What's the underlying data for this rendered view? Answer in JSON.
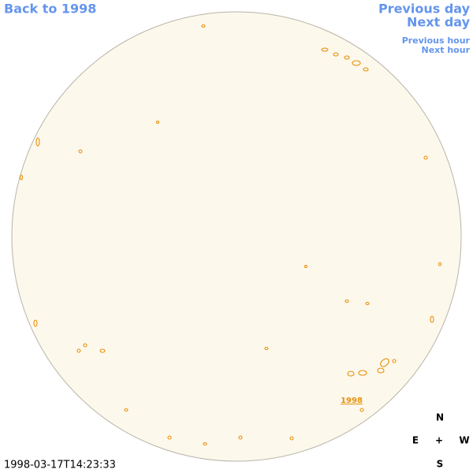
{
  "nav": {
    "back": "Back to 1998",
    "previous_day": "Previous day",
    "next_day": "Next day",
    "previous_hour": "Previous hour",
    "next_hour": "Next hour"
  },
  "region_label": "1998",
  "timestamp": "1998-03-17T14:23:33",
  "compass": {
    "north": "N",
    "east": "E",
    "center": "+",
    "west": "W",
    "south": "S"
  }
}
